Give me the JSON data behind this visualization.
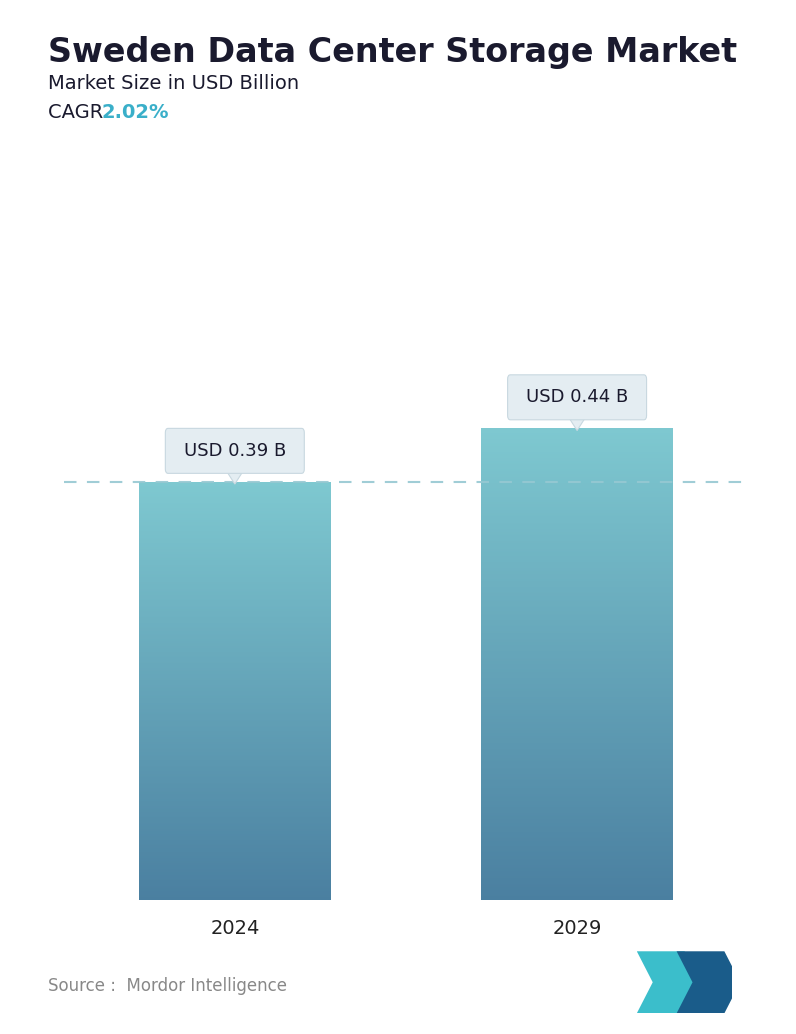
{
  "title": "Sweden Data Center Storage Market",
  "subtitle": "Market Size in USD Billion",
  "cagr_label": "CAGR ",
  "cagr_value": "2.02%",
  "cagr_color": "#3AAFC9",
  "categories": [
    "2024",
    "2029"
  ],
  "values": [
    0.39,
    0.44
  ],
  "value_labels": [
    "USD 0.39 B",
    "USD 0.44 B"
  ],
  "bar_color_top": "#7EC8D0",
  "bar_color_bottom": "#4A7FA0",
  "dashed_line_color": "#96C8D2",
  "source_text": "Source :  Mordor Intelligence",
  "background_color": "#FFFFFF",
  "title_fontsize": 24,
  "subtitle_fontsize": 14,
  "cagr_fontsize": 14,
  "tick_fontsize": 14,
  "label_fontsize": 13,
  "source_fontsize": 12,
  "ylim": [
    0,
    0.56
  ]
}
